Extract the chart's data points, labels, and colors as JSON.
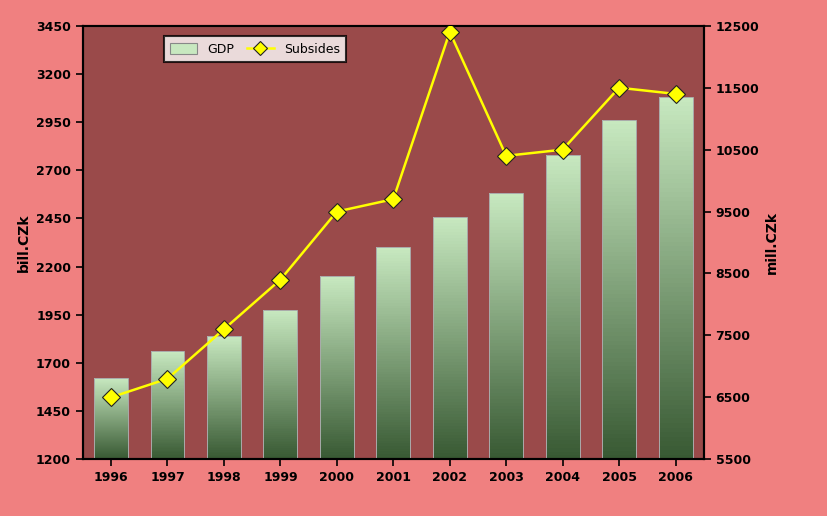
{
  "years": [
    1996,
    1997,
    1998,
    1999,
    2000,
    2001,
    2002,
    2003,
    2004,
    2005,
    2006
  ],
  "gdp": [
    1620,
    1760,
    1840,
    1975,
    2150,
    2300,
    2460,
    2580,
    2780,
    2960,
    3080
  ],
  "subsidies": [
    6500,
    6800,
    7600,
    8400,
    9500,
    9700,
    12400,
    10400,
    10500,
    11500,
    11400
  ],
  "bar_color_light": "#c8e8c0",
  "bar_color_dark": "#3a5a32",
  "line_color": "#ffff00",
  "marker_color": "#ffff00",
  "background_outer": "#f08080",
  "background_inner": "#9a4a4a",
  "ylabel_left": "bill.CZk",
  "ylabel_right": "mill.CZk",
  "ylim_left": [
    1200,
    3450
  ],
  "ylim_right": [
    5500,
    12500
  ],
  "yticks_left": [
    1200,
    1450,
    1700,
    1950,
    2200,
    2450,
    2700,
    2950,
    3200,
    3450
  ],
  "yticks_right": [
    5500,
    6500,
    7500,
    8500,
    9500,
    10500,
    11500,
    12500
  ],
  "legend_labels": [
    "GDP",
    "Subsides"
  ],
  "title": ""
}
